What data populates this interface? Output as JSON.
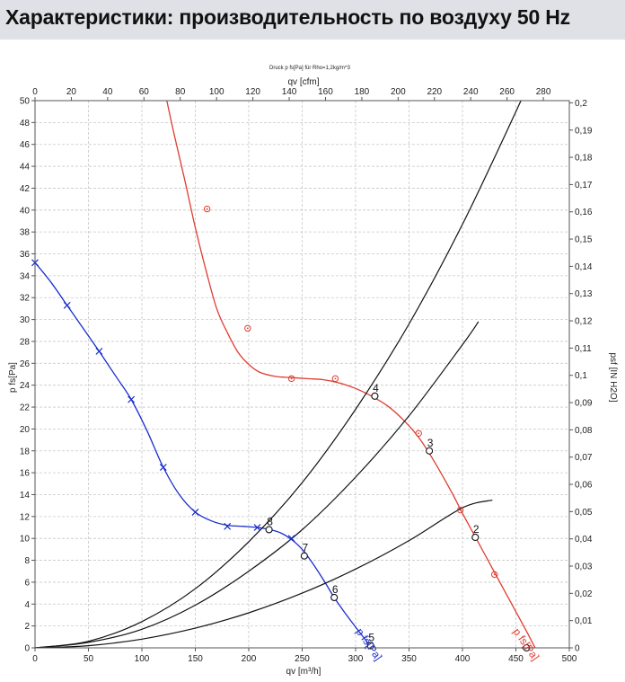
{
  "header": {
    "title": "Характеристики: производительность по воздуху 50 Hz"
  },
  "chart_data": {
    "type": "line",
    "title": "Druck p fs[Pa] für Rho=1,2kg/m^3",
    "xlabel": "qv [m³/h]",
    "x2label": "qv [cfm]",
    "ylabel": "p fs[Pa]",
    "y2label": "psf [IN H2O]",
    "xlim": [
      0,
      500
    ],
    "ylim": [
      0,
      50
    ],
    "x2lim": [
      0,
      294.3
    ],
    "y2lim": [
      0,
      0.2008
    ],
    "x_ticks": [
      0,
      50,
      100,
      150,
      200,
      250,
      300,
      350,
      400,
      450,
      500
    ],
    "y_ticks": [
      0,
      2,
      4,
      6,
      8,
      10,
      12,
      14,
      16,
      18,
      20,
      22,
      24,
      26,
      28,
      30,
      32,
      34,
      36,
      38,
      40,
      42,
      44,
      46,
      48,
      50
    ],
    "x2_ticks": [
      0,
      20,
      40,
      60,
      80,
      100,
      120,
      140,
      160,
      180,
      200,
      220,
      240,
      260,
      280
    ],
    "y2_ticks": [
      "0",
      "0,01",
      "0,02",
      "0,03",
      "0,04",
      "0,05",
      "0,06",
      "0,07",
      "0,08",
      "0,09",
      "0,1",
      "0,11",
      "0,12",
      "0,13",
      "0,14",
      "0,15",
      "0,16",
      "0,17",
      "0,18",
      "0,19",
      "0,2"
    ],
    "grid": true,
    "colors": {
      "red": "#e03c31",
      "blue": "#1a2ecc",
      "black": "#111111",
      "header_bg": "#dfe1e6"
    },
    "series": [
      {
        "name": "p fs[Pa]",
        "color": "red",
        "line": [
          [
            122,
            50.6
          ],
          [
            130,
            47
          ],
          [
            140,
            42.8
          ],
          [
            150,
            38.4
          ],
          [
            160,
            34.5
          ],
          [
            170,
            31
          ],
          [
            180,
            28.8
          ],
          [
            190,
            27
          ],
          [
            200,
            25.9
          ],
          [
            210,
            25.2
          ],
          [
            225,
            24.8
          ],
          [
            240,
            24.7
          ],
          [
            255,
            24.6
          ],
          [
            270,
            24.5
          ],
          [
            285,
            24.2
          ],
          [
            300,
            23.7
          ],
          [
            315,
            23
          ],
          [
            330,
            22.1
          ],
          [
            345,
            20.8
          ],
          [
            360,
            19.1
          ],
          [
            375,
            16.8
          ],
          [
            390,
            14.2
          ],
          [
            400,
            12.3
          ],
          [
            410,
            10.5
          ],
          [
            420,
            8.7
          ],
          [
            430,
            6.9
          ],
          [
            440,
            5.1
          ],
          [
            450,
            3.3
          ],
          [
            460,
            1.5
          ],
          [
            468,
            0
          ]
        ],
        "markers": [
          [
            161,
            40.1
          ],
          [
            199,
            29.2
          ],
          [
            240,
            24.6
          ],
          [
            281,
            24.6
          ],
          [
            359,
            19.6
          ],
          [
            398,
            12.6
          ],
          [
            430,
            6.7
          ]
        ],
        "marker_style": "circle"
      },
      {
        "name": "p fs[Pa]",
        "color": "blue",
        "line": [
          [
            0,
            35.2
          ],
          [
            15,
            33.4
          ],
          [
            30,
            31.3
          ],
          [
            45,
            29.2
          ],
          [
            60,
            27.1
          ],
          [
            75,
            24.9
          ],
          [
            90,
            22.7
          ],
          [
            105,
            19.8
          ],
          [
            120,
            16.5
          ],
          [
            135,
            14
          ],
          [
            150,
            12.4
          ],
          [
            165,
            11.6
          ],
          [
            180,
            11.2
          ],
          [
            195,
            11.1
          ],
          [
            208,
            11
          ],
          [
            220,
            10.8
          ],
          [
            230,
            10.5
          ],
          [
            240,
            9.9
          ],
          [
            250,
            9
          ],
          [
            260,
            7.7
          ],
          [
            270,
            6.2
          ],
          [
            280,
            4.6
          ],
          [
            290,
            3.2
          ],
          [
            300,
            1.9
          ],
          [
            315,
            0
          ]
        ],
        "markers": [
          [
            0,
            35.2
          ],
          [
            30,
            31.3
          ],
          [
            60,
            27.1
          ],
          [
            90,
            22.7
          ],
          [
            120,
            16.5
          ],
          [
            150,
            12.4
          ],
          [
            180,
            11.1
          ],
          [
            208,
            11
          ],
          [
            240,
            10
          ]
        ],
        "marker_style": "x"
      },
      {
        "name": "",
        "color": "black",
        "line": [
          [
            0,
            0
          ],
          [
            50,
            0.6
          ],
          [
            100,
            2.4
          ],
          [
            150,
            5.4
          ],
          [
            200,
            9.7
          ],
          [
            250,
            15.1
          ],
          [
            300,
            21.8
          ],
          [
            350,
            29.6
          ],
          [
            400,
            38.7
          ],
          [
            450,
            49
          ],
          [
            468,
            53
          ]
        ]
      },
      {
        "name": "",
        "color": "black",
        "line": [
          [
            0,
            0
          ],
          [
            50,
            0.5
          ],
          [
            100,
            1.7
          ],
          [
            150,
            3.9
          ],
          [
            200,
            7
          ],
          [
            250,
            10.8
          ],
          [
            300,
            15.6
          ],
          [
            350,
            21.2
          ],
          [
            400,
            27.7
          ],
          [
            415,
            29.8
          ]
        ]
      },
      {
        "name": "",
        "color": "black",
        "line": [
          [
            0,
            0
          ],
          [
            50,
            0.2
          ],
          [
            100,
            0.8
          ],
          [
            150,
            1.8
          ],
          [
            200,
            3.2
          ],
          [
            250,
            5
          ],
          [
            300,
            7.2
          ],
          [
            350,
            9.8
          ],
          [
            400,
            12.8
          ],
          [
            428,
            13.5
          ]
        ]
      }
    ],
    "operating_points": [
      {
        "label": "2",
        "x": 412,
        "y": 10.1
      },
      {
        "label": "3",
        "x": 369,
        "y": 18
      },
      {
        "label": "4",
        "x": 318,
        "y": 23
      },
      {
        "label": "5",
        "x": 314,
        "y": 0.2
      },
      {
        "label": "6",
        "x": 280,
        "y": 4.6
      },
      {
        "label": "7",
        "x": 252,
        "y": 8.4
      },
      {
        "label": "8",
        "x": 219,
        "y": 10.8
      },
      {
        "label": "",
        "x": 460,
        "y": 0
      }
    ],
    "annotations": [
      {
        "text": "p fs[Pa]",
        "color": "blue",
        "x": 300,
        "y": 1.5
      },
      {
        "text": "p fs[Pa]",
        "color": "red",
        "x": 447,
        "y": 1.5
      }
    ]
  }
}
